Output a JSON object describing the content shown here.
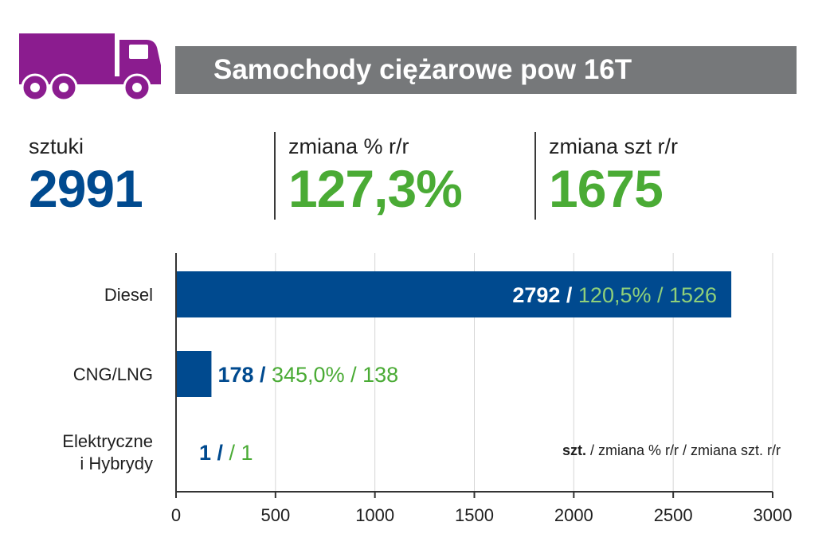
{
  "header": {
    "title": "Samochody ciężarowe pow 16T",
    "icon": "truck-icon",
    "icon_color": "#8b1c8f"
  },
  "summary": [
    {
      "label": "sztuki",
      "value": "2991",
      "color": "#004a8f"
    },
    {
      "label": "zmiana % r/r",
      "value": "127,3%",
      "color": "#4aab35"
    },
    {
      "label": "zmiana szt r/r",
      "value": "1675",
      "color": "#4aab35"
    }
  ],
  "chart_data": {
    "type": "bar",
    "orientation": "horizontal",
    "categories": [
      [
        "Diesel"
      ],
      [
        "CNG/LNG"
      ],
      [
        "Elektryczne",
        "i Hybrydy"
      ]
    ],
    "values": [
      2792,
      178,
      1
    ],
    "pct_change": [
      "120,5%",
      "345,0%",
      ""
    ],
    "unit_change": [
      1526,
      138,
      1
    ],
    "xlim": [
      0,
      3000
    ],
    "xticks": [
      0,
      500,
      1000,
      1500,
      2000,
      2500,
      3000
    ],
    "grid": true,
    "colors": {
      "bar": "#004a8f",
      "change": "#4aab35"
    },
    "legend_text": {
      "bold": "szt.",
      "rest": " / zmiana % r/r / zmiana szt. r/r"
    }
  }
}
